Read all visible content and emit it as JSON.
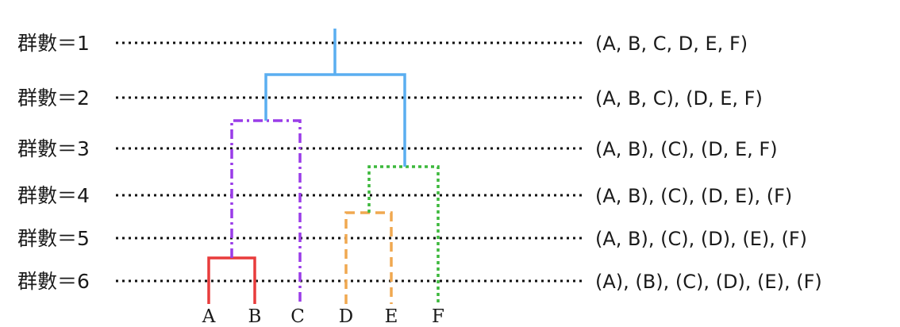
{
  "levels": [
    {
      "label": "群數＝1",
      "partition": "(A, B, C, D, E, F)"
    },
    {
      "label": "群數＝2",
      "partition": "(A, B, C), (D, E, F)"
    },
    {
      "label": "群數＝3",
      "partition": "(A, B), (C), (D, E, F)"
    },
    {
      "label": "群數＝4",
      "partition": "(A, B), (C), (D, E), (F)"
    },
    {
      "label": "群數＝5",
      "partition": "(A, B), (C), (D), (E), (F)"
    },
    {
      "label": "群數＝6",
      "partition": "(A), (B), (C), (D), (E), (F)"
    }
  ],
  "leaves": [
    "A",
    "B",
    "C",
    "D",
    "E",
    "F"
  ],
  "colors": {
    "root_merge": "#5aaef0",
    "ab_c_merge": "#9a3ce8",
    "de_f_merge": "#3cb83c",
    "d_e_merge": "#f0a850",
    "a_b_merge": "#e83c3c",
    "guide_line": "#111111"
  }
}
